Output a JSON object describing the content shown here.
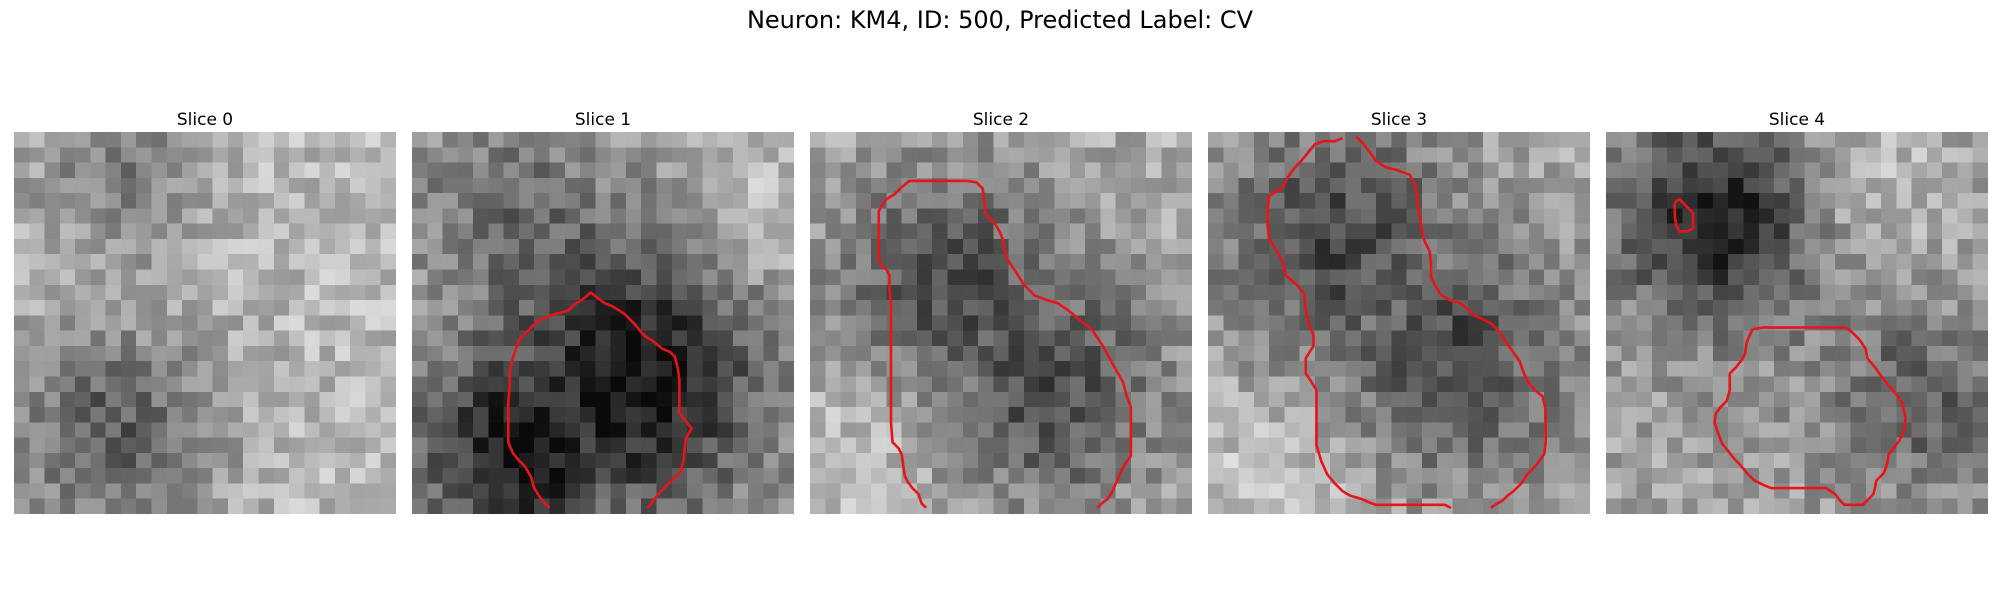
{
  "figure": {
    "title": "Neuron: KM4, ID: 500, Predicted Label: CV"
  },
  "panels": [
    {
      "title": "Slice 0",
      "pattern": "dark-bottom-left",
      "contours": []
    },
    {
      "title": "Slice 1",
      "pattern": "dark-bottom-right",
      "contours": [
        [
          [
            6.6,
            14.8
          ],
          [
            6.8,
            14.2
          ],
          [
            7.0,
            13.6
          ],
          [
            7.6,
            13.0
          ],
          [
            8.2,
            12.4
          ],
          [
            8.8,
            12.1
          ],
          [
            9.4,
            11.9
          ],
          [
            10.2,
            11.7
          ],
          [
            10.6,
            11.3
          ],
          [
            11.1,
            11.0
          ],
          [
            11.7,
            10.5
          ],
          [
            12.2,
            10.9
          ],
          [
            12.6,
            11.2
          ],
          [
            13.1,
            11.4
          ],
          [
            13.9,
            11.9
          ],
          [
            14.6,
            12.6
          ],
          [
            15.0,
            13.1
          ],
          [
            15.3,
            13.4
          ],
          [
            15.8,
            13.7
          ],
          [
            16.4,
            14.2
          ],
          [
            16.9,
            14.4
          ],
          [
            17.2,
            14.7
          ],
          [
            17.4,
            15.5
          ],
          [
            17.5,
            16.2
          ],
          [
            17.5,
            17.3
          ],
          [
            17.5,
            18.4
          ],
          [
            17.9,
            18.9
          ],
          [
            18.3,
            19.4
          ],
          [
            17.9,
            20.1
          ],
          [
            17.8,
            21.3
          ],
          [
            17.6,
            22.2
          ],
          [
            17.2,
            22.6
          ],
          [
            16.8,
            23.0
          ],
          [
            16.2,
            23.6
          ],
          [
            15.6,
            24.4
          ],
          [
            15.4,
            24.6
          ]
        ],
        [
          [
            6.6,
            14.8
          ],
          [
            6.4,
            15.6
          ],
          [
            6.4,
            16.6
          ],
          [
            6.3,
            17.7
          ],
          [
            6.3,
            18.8
          ],
          [
            6.3,
            20.3
          ],
          [
            6.6,
            21.0
          ],
          [
            7.0,
            21.5
          ],
          [
            7.4,
            21.9
          ],
          [
            7.8,
            22.6
          ],
          [
            8.0,
            23.3
          ],
          [
            8.3,
            23.8
          ],
          [
            8.6,
            24.2
          ],
          [
            9.0,
            24.6
          ]
        ]
      ]
    },
    {
      "title": "Slice 2",
      "pattern": "dark-center",
      "contours": [
        [
          [
            5.9,
            3.7
          ],
          [
            5.5,
            4.1
          ],
          [
            5.0,
            4.4
          ],
          [
            4.7,
            4.8
          ],
          [
            4.5,
            5.2
          ],
          [
            4.5,
            6.0
          ],
          [
            4.5,
            7.1
          ],
          [
            4.5,
            8.1
          ],
          [
            4.6,
            8.7
          ],
          [
            5.0,
            9.0
          ],
          [
            5.2,
            9.4
          ],
          [
            5.2,
            10.2
          ],
          [
            5.3,
            11.3
          ],
          [
            5.3,
            12.4
          ],
          [
            5.3,
            13.5
          ],
          [
            5.3,
            14.6
          ],
          [
            5.3,
            15.7
          ],
          [
            5.3,
            16.8
          ],
          [
            5.3,
            17.9
          ],
          [
            5.3,
            19.0
          ],
          [
            5.4,
            20.3
          ],
          [
            5.8,
            20.7
          ],
          [
            6.0,
            21.1
          ],
          [
            6.1,
            21.8
          ],
          [
            6.2,
            22.5
          ],
          [
            6.4,
            22.9
          ],
          [
            6.7,
            23.3
          ],
          [
            7.1,
            23.7
          ],
          [
            7.3,
            24.3
          ],
          [
            7.6,
            24.6
          ]
        ],
        [
          [
            5.9,
            3.7
          ],
          [
            6.5,
            3.2
          ],
          [
            7.2,
            3.2
          ],
          [
            8.1,
            3.2
          ],
          [
            9.1,
            3.2
          ],
          [
            10.3,
            3.2
          ],
          [
            10.9,
            3.3
          ],
          [
            11.3,
            3.7
          ],
          [
            11.4,
            4.4
          ],
          [
            11.5,
            5.4
          ],
          [
            12.1,
            6.0
          ],
          [
            12.4,
            6.5
          ],
          [
            12.6,
            7.0
          ],
          [
            12.7,
            7.6
          ],
          [
            12.9,
            8.3
          ],
          [
            13.5,
            9.2
          ],
          [
            14.0,
            10.0
          ],
          [
            14.7,
            10.7
          ],
          [
            15.5,
            11.0
          ],
          [
            16.2,
            11.2
          ],
          [
            16.8,
            11.6
          ],
          [
            17.3,
            12.0
          ],
          [
            17.9,
            12.5
          ],
          [
            18.5,
            13.0
          ],
          [
            19.1,
            13.9
          ],
          [
            19.6,
            14.8
          ],
          [
            20.1,
            15.7
          ],
          [
            20.5,
            16.4
          ],
          [
            20.7,
            17.2
          ],
          [
            21.0,
            18.0
          ],
          [
            21.0,
            19.1
          ],
          [
            21.0,
            20.3
          ],
          [
            21.0,
            21.2
          ],
          [
            20.7,
            21.6
          ],
          [
            20.4,
            22.1
          ],
          [
            20.1,
            22.8
          ],
          [
            19.8,
            23.5
          ],
          [
            19.5,
            24.0
          ],
          [
            19.1,
            24.3
          ],
          [
            18.8,
            24.6
          ]
        ]
      ]
    },
    {
      "title": "Slice 3",
      "pattern": "dark-upper-center",
      "contours": [
        [
          [
            8.8,
            0.4
          ],
          [
            8.3,
            0.6
          ],
          [
            7.6,
            0.6
          ],
          [
            7.0,
            0.8
          ],
          [
            6.5,
            1.4
          ],
          [
            6.1,
            1.9
          ],
          [
            5.7,
            2.3
          ],
          [
            5.2,
            3.0
          ],
          [
            4.9,
            3.6
          ],
          [
            4.0,
            4.2
          ],
          [
            3.9,
            5.0
          ],
          [
            3.9,
            6.1
          ],
          [
            4.0,
            7.0
          ],
          [
            4.5,
            7.8
          ],
          [
            4.9,
            8.5
          ],
          [
            5.1,
            9.4
          ],
          [
            5.8,
            10.0
          ],
          [
            6.3,
            10.6
          ],
          [
            6.4,
            11.7
          ],
          [
            6.6,
            12.6
          ],
          [
            6.9,
            13.3
          ],
          [
            6.9,
            14.0
          ],
          [
            6.4,
            14.8
          ],
          [
            6.4,
            15.8
          ],
          [
            6.8,
            16.4
          ],
          [
            7.1,
            16.9
          ],
          [
            7.1,
            17.6
          ],
          [
            7.1,
            18.5
          ],
          [
            7.1,
            19.4
          ],
          [
            7.1,
            20.5
          ],
          [
            7.4,
            21.5
          ],
          [
            7.8,
            22.4
          ],
          [
            8.3,
            23.0
          ],
          [
            8.8,
            23.5
          ],
          [
            9.3,
            23.8
          ],
          [
            10.0,
            24.0
          ],
          [
            10.7,
            24.3
          ],
          [
            11.0,
            24.4
          ],
          [
            11.9,
            24.4
          ],
          [
            12.8,
            24.4
          ],
          [
            13.9,
            24.4
          ],
          [
            14.9,
            24.4
          ],
          [
            15.5,
            24.4
          ],
          [
            15.9,
            24.6
          ]
        ],
        [
          [
            9.7,
            0.3
          ],
          [
            10.1,
            0.7
          ],
          [
            10.5,
            1.2
          ],
          [
            11.0,
            1.9
          ],
          [
            11.6,
            2.3
          ],
          [
            12.4,
            2.5
          ],
          [
            13.2,
            2.8
          ],
          [
            13.6,
            3.6
          ],
          [
            13.7,
            4.6
          ],
          [
            13.9,
            5.8
          ],
          [
            14.0,
            6.6
          ],
          [
            14.2,
            7.2
          ],
          [
            14.5,
            7.8
          ],
          [
            14.6,
            8.6
          ],
          [
            14.6,
            9.5
          ],
          [
            14.9,
            10.1
          ],
          [
            15.2,
            10.6
          ],
          [
            15.8,
            11.0
          ],
          [
            16.5,
            11.2
          ],
          [
            17.0,
            11.6
          ],
          [
            17.4,
            12.0
          ],
          [
            18.1,
            12.3
          ],
          [
            18.6,
            12.6
          ],
          [
            19.0,
            13.0
          ],
          [
            19.4,
            13.6
          ],
          [
            19.9,
            14.3
          ],
          [
            20.4,
            15.0
          ],
          [
            20.6,
            15.6
          ],
          [
            20.9,
            16.3
          ],
          [
            21.4,
            16.9
          ],
          [
            21.9,
            17.3
          ],
          [
            22.1,
            18.2
          ],
          [
            22.1,
            19.3
          ],
          [
            22.1,
            20.3
          ],
          [
            22.0,
            21.1
          ],
          [
            21.7,
            21.5
          ],
          [
            21.4,
            21.9
          ],
          [
            20.9,
            22.4
          ],
          [
            20.5,
            23.0
          ],
          [
            20.0,
            23.5
          ],
          [
            19.6,
            23.8
          ],
          [
            19.3,
            24.1
          ],
          [
            18.8,
            24.4
          ],
          [
            18.5,
            24.6
          ]
        ]
      ]
    },
    {
      "title": "Slice 4",
      "pattern": "dark-top-left",
      "contours": [
        [
          [
            4.5,
            4.6
          ],
          [
            4.8,
            4.4
          ],
          [
            5.1,
            4.7
          ],
          [
            5.4,
            5.0
          ],
          [
            5.7,
            5.3
          ],
          [
            5.7,
            5.8
          ],
          [
            5.7,
            6.3
          ],
          [
            5.3,
            6.5
          ],
          [
            4.8,
            6.5
          ],
          [
            4.6,
            6.1
          ],
          [
            4.5,
            5.5
          ],
          [
            4.5,
            4.6
          ]
        ],
        [
          [
            9.6,
            12.9
          ],
          [
            10.3,
            12.8
          ],
          [
            11.0,
            12.8
          ],
          [
            11.9,
            12.8
          ],
          [
            13.0,
            12.8
          ],
          [
            14.0,
            12.8
          ],
          [
            15.0,
            12.8
          ],
          [
            15.7,
            12.8
          ],
          [
            16.1,
            13.1
          ],
          [
            16.6,
            13.6
          ],
          [
            17.0,
            14.2
          ],
          [
            17.1,
            14.8
          ],
          [
            17.6,
            15.4
          ],
          [
            18.1,
            16.1
          ],
          [
            18.6,
            16.7
          ],
          [
            19.1,
            17.3
          ],
          [
            19.4,
            17.8
          ],
          [
            19.6,
            18.7
          ],
          [
            19.5,
            19.6
          ],
          [
            19.2,
            20.2
          ],
          [
            18.8,
            20.7
          ],
          [
            18.5,
            21.1
          ],
          [
            18.4,
            21.7
          ],
          [
            18.2,
            22.3
          ],
          [
            17.7,
            22.8
          ],
          [
            17.6,
            23.3
          ],
          [
            17.5,
            23.7
          ],
          [
            17.2,
            24.0
          ],
          [
            16.8,
            24.4
          ],
          [
            16.3,
            24.4
          ],
          [
            15.6,
            24.4
          ],
          [
            15.3,
            24.1
          ],
          [
            15.0,
            23.7
          ],
          [
            14.4,
            23.3
          ],
          [
            13.4,
            23.3
          ],
          [
            12.5,
            23.3
          ],
          [
            11.6,
            23.3
          ],
          [
            10.8,
            23.3
          ],
          [
            10.3,
            23.1
          ],
          [
            9.7,
            22.8
          ],
          [
            9.2,
            22.3
          ],
          [
            8.8,
            21.8
          ],
          [
            8.4,
            21.4
          ],
          [
            8.1,
            21.0
          ],
          [
            7.6,
            20.4
          ],
          [
            7.3,
            19.6
          ],
          [
            7.1,
            19.0
          ],
          [
            7.2,
            18.4
          ],
          [
            7.5,
            18.0
          ],
          [
            7.9,
            17.6
          ],
          [
            8.1,
            16.9
          ],
          [
            8.1,
            15.8
          ],
          [
            8.5,
            15.4
          ],
          [
            8.9,
            14.9
          ],
          [
            9.1,
            14.5
          ],
          [
            9.2,
            13.8
          ],
          [
            9.4,
            13.3
          ],
          [
            9.6,
            12.9
          ]
        ]
      ]
    }
  ]
}
